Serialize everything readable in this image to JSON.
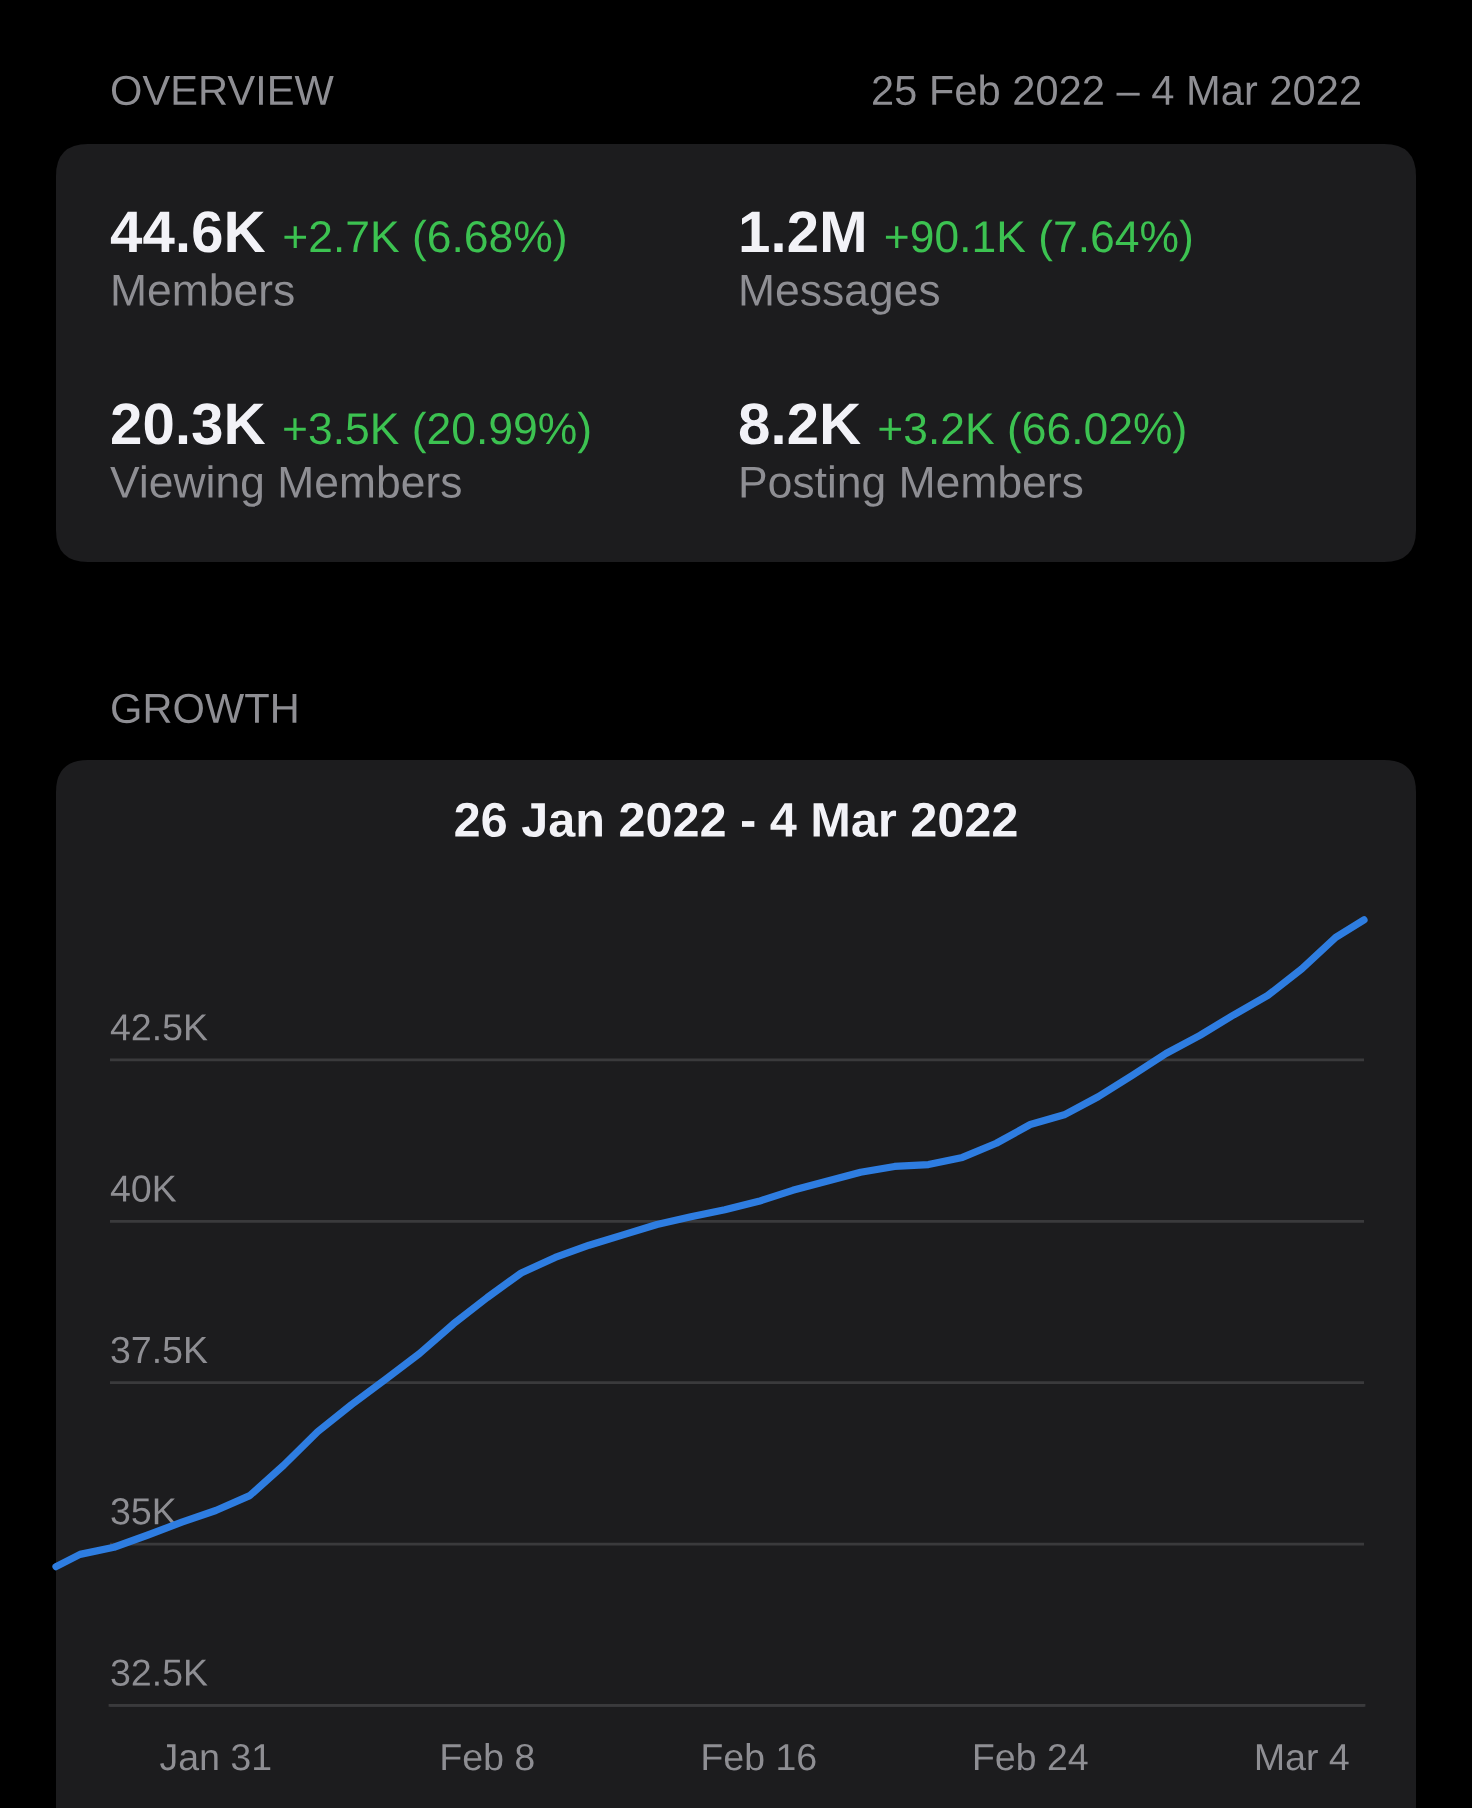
{
  "chart_data": [
    {
      "type": "other",
      "title": "OVERVIEW",
      "subtitle": "25 Feb 2022 – 4 Mar 2022",
      "annotations": [
        "44.6K",
        "+2.7K (6.68%)",
        "Members",
        "1.2M",
        "+90.1K (7.64%)",
        "Messages",
        "20.3K",
        "+3.5K (20.99%)",
        "Viewing Members",
        "8.2K",
        "+3.2K (66.02%)",
        "Posting Members"
      ]
    },
    {
      "type": "line",
      "title": "GROWTH",
      "subtitle": "26 Jan 2022 - 4 Mar 2022",
      "x": [
        "2022-01-26T07:00",
        "2022-01-27",
        "2022-01-28",
        "2022-01-29",
        "2022-01-30",
        "2022-01-31",
        "2022-02-01",
        "2022-02-02",
        "2022-02-03",
        "2022-02-04",
        "2022-02-05",
        "2022-02-06",
        "2022-02-07",
        "2022-02-08",
        "2022-02-09",
        "2022-02-10",
        "2022-02-11",
        "2022-02-12",
        "2022-02-13",
        "2022-02-14",
        "2022-02-15",
        "2022-02-16",
        "2022-02-17",
        "2022-02-18",
        "2022-02-19",
        "2022-02-20",
        "2022-02-21",
        "2022-02-22",
        "2022-02-23",
        "2022-02-24",
        "2022-02-25",
        "2022-02-26",
        "2022-02-27",
        "2022-02-28",
        "2022-03-01",
        "2022-03-02",
        "2022-03-03",
        "2022-03-04",
        "2022-03-05",
        "2022-03-05T20:00"
      ],
      "series": [
        {
          "color": "#2e7de1",
          "values": [
            34650,
            34840,
            34950,
            35140,
            35340,
            35520,
            35750,
            36220,
            36740,
            37160,
            37550,
            37950,
            38410,
            38820,
            39200,
            39440,
            39630,
            39790,
            39950,
            40070,
            40180,
            40310,
            40480,
            40620,
            40760,
            40850,
            40880,
            40990,
            41210,
            41500,
            41650,
            41930,
            42260,
            42600,
            42880,
            43200,
            43500,
            43910,
            44400,
            44670
          ]
        }
      ],
      "xlim": [
        "2022-01-26T07:00",
        "2022-03-05T20:00"
      ],
      "xticks": [
        {
          "value": "2022-01-31",
          "label": "Jan 31"
        },
        {
          "value": "2022-02-08",
          "label": "Feb 8"
        },
        {
          "value": "2022-02-16",
          "label": "Feb 16"
        },
        {
          "value": "2022-02-24",
          "label": "Feb 24"
        },
        {
          "value": "2022-03-04",
          "label": "Mar 4"
        }
      ],
      "ylim": [
        32500,
        45000
      ],
      "yticks": [
        {
          "value": 32500,
          "label": "32.5K"
        },
        {
          "value": 35000,
          "label": "35K"
        },
        {
          "value": 37500,
          "label": "37.5K"
        },
        {
          "value": 40000,
          "label": "40K"
        },
        {
          "value": 42500,
          "label": "42.5K"
        }
      ],
      "grid": "y"
    }
  ]
}
